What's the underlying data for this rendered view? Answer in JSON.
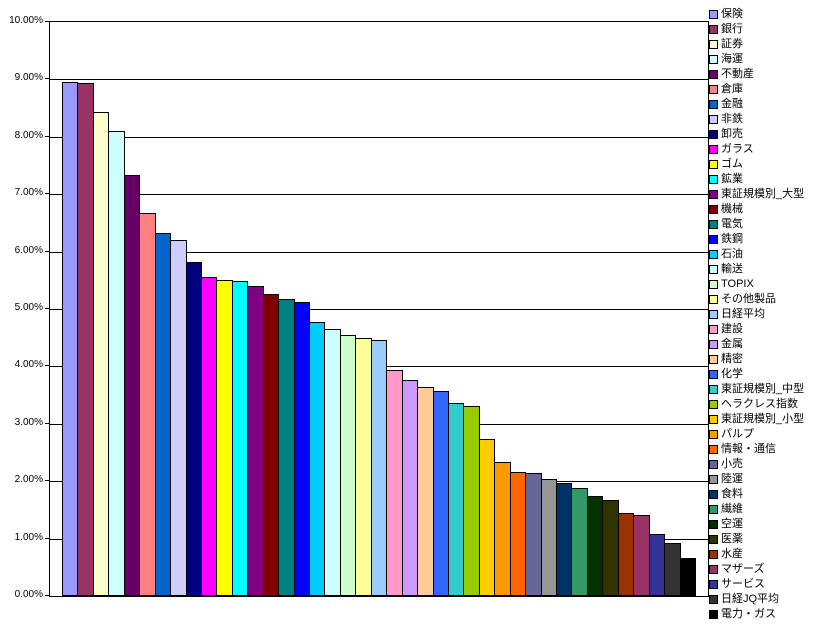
{
  "chart_data": {
    "type": "bar",
    "title": "",
    "xlabel": "",
    "ylabel": "",
    "ylim": [
      0,
      10
    ],
    "ytick_step": 1,
    "grid": true,
    "legend_position": "right",
    "y_tick_labels": [
      "0.00%",
      "1.00%",
      "2.00%",
      "3.00%",
      "4.00%",
      "5.00%",
      "6.00%",
      "7.00%",
      "8.00%",
      "9.00%",
      "10.00%"
    ],
    "categories": [
      "保険",
      "銀行",
      "証券",
      "海運",
      "不動産",
      "倉庫",
      "金融",
      "非鉄",
      "卸売",
      "ガラス",
      "ゴム",
      "鉱業",
      "東証規模別_大型",
      "機械",
      "電気",
      "鉄鋼",
      "石油",
      "輸送",
      "TOPIX",
      "その他製品",
      "日経平均",
      "建設",
      "金属",
      "精密",
      "化学",
      "東証規模別_中型",
      "ヘラクレス指数",
      "東証規模別_小型",
      "パルプ",
      "情報・通信",
      "小売",
      "陸運",
      "食料",
      "繊維",
      "空運",
      "医薬",
      "水産",
      "マザーズ",
      "サービス",
      "日経JQ平均",
      "電力・ガス"
    ],
    "values": [
      8.95,
      8.93,
      8.43,
      8.1,
      7.33,
      6.68,
      6.33,
      6.21,
      5.82,
      5.55,
      5.51,
      5.49,
      5.4,
      5.26,
      5.18,
      5.13,
      4.77,
      4.66,
      4.54,
      4.5,
      4.46,
      3.94,
      3.77,
      3.64,
      3.58,
      3.36,
      3.31,
      2.73,
      2.33,
      2.16,
      2.14,
      2.04,
      1.97,
      1.89,
      1.75,
      1.67,
      1.45,
      1.41,
      1.08,
      0.93,
      0.67
    ],
    "colors": [
      "#9999FF",
      "#993366",
      "#FFFFCC",
      "#CCFFFF",
      "#660066",
      "#FF8080",
      "#0066CC",
      "#CCCCFF",
      "#000080",
      "#FF00FF",
      "#FFFF00",
      "#00FFFF",
      "#800080",
      "#800000",
      "#008080",
      "#0000FF",
      "#00CCFF",
      "#CCFFFF",
      "#CCFFCC",
      "#FFFF99",
      "#99CCFF",
      "#FF99CC",
      "#CC99FF",
      "#FFCC99",
      "#3366FF",
      "#33CCCC",
      "#99CC00",
      "#FFCC00",
      "#FF9900",
      "#FF6600",
      "#666699",
      "#969696",
      "#003366",
      "#339966",
      "#003300",
      "#333300",
      "#993300",
      "#993366",
      "#333399",
      "#333333",
      "#000000"
    ],
    "axis_color": "#000000",
    "background_color": "#FFFFFF"
  }
}
